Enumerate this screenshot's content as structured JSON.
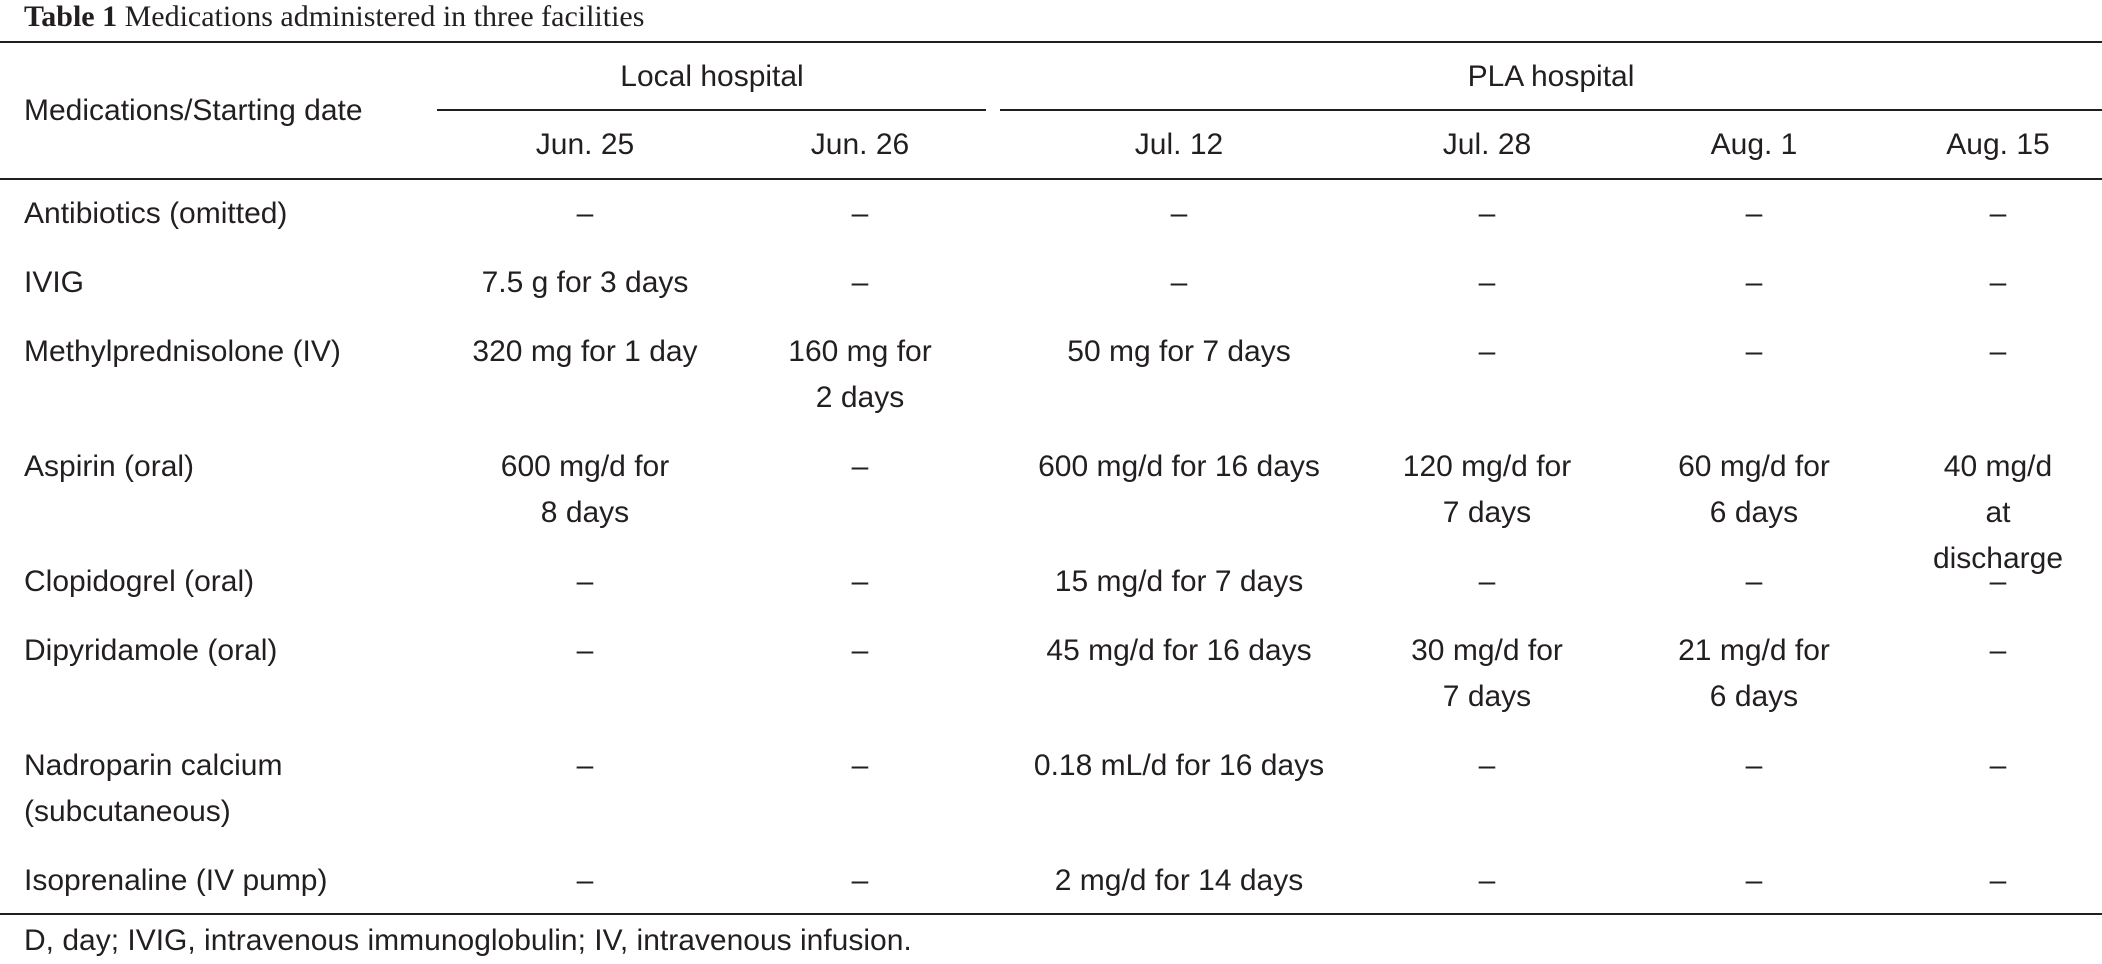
{
  "table": {
    "caption_label": "Table 1",
    "caption_text": "Medications administered in three facilities",
    "stub_header": "Medications/Starting date",
    "groups": [
      {
        "label": "Local hospital"
      },
      {
        "label": "PLA hospital"
      }
    ],
    "dates": [
      "Jun. 25",
      "Jun. 26",
      "Jul. 12",
      "Jul. 28",
      "Aug. 1",
      "Aug. 15"
    ],
    "rows": [
      {
        "med": [
          "Antibiotics (omitted)"
        ],
        "cells": [
          [
            "–"
          ],
          [
            "–"
          ],
          [
            "–"
          ],
          [
            "–"
          ],
          [
            "–"
          ],
          [
            "–"
          ]
        ]
      },
      {
        "med": [
          "IVIG"
        ],
        "cells": [
          [
            "7.5 g for 3 days"
          ],
          [
            "–"
          ],
          [
            "–"
          ],
          [
            "–"
          ],
          [
            "–"
          ],
          [
            "–"
          ]
        ]
      },
      {
        "med": [
          "Methylprednisolone (IV)"
        ],
        "cells": [
          [
            "320 mg for 1 day"
          ],
          [
            "160 mg for",
            "2 days"
          ],
          [
            "50 mg for 7 days"
          ],
          [
            "–"
          ],
          [
            "–"
          ],
          [
            "–"
          ]
        ]
      },
      {
        "med": [
          "Aspirin (oral)"
        ],
        "cells": [
          [
            "600 mg/d for",
            "8 days"
          ],
          [
            "–"
          ],
          [
            "600 mg/d for 16 days"
          ],
          [
            "120 mg/d for",
            "7 days"
          ],
          [
            "60 mg/d for",
            "6 days"
          ],
          [
            "40 mg/d at",
            "discharge"
          ]
        ]
      },
      {
        "med": [
          "Clopidogrel (oral)"
        ],
        "cells": [
          [
            "–"
          ],
          [
            "–"
          ],
          [
            "15 mg/d for 7 days"
          ],
          [
            "–"
          ],
          [
            "–"
          ],
          [
            "–"
          ]
        ]
      },
      {
        "med": [
          "Dipyridamole (oral)"
        ],
        "cells": [
          [
            "–"
          ],
          [
            "–"
          ],
          [
            "45 mg/d for 16 days"
          ],
          [
            "30 mg/d for",
            "7 days"
          ],
          [
            "21 mg/d for",
            "6 days"
          ],
          [
            "–"
          ]
        ]
      },
      {
        "med": [
          "Nadroparin calcium",
          "(subcutaneous)"
        ],
        "cells": [
          [
            "–"
          ],
          [
            "–"
          ],
          [
            "0.18 mL/d for 16 days"
          ],
          [
            "–"
          ],
          [
            "–"
          ],
          [
            "–"
          ]
        ]
      },
      {
        "med": [
          "Isoprenaline (IV pump)"
        ],
        "cells": [
          [
            "–"
          ],
          [
            "–"
          ],
          [
            "2 mg/d for 14 days"
          ],
          [
            "–"
          ],
          [
            "–"
          ],
          [
            "–"
          ]
        ]
      }
    ],
    "footnote": "D, day; IVIG, intravenous immunoglobulin; IV, intravenous infusion."
  }
}
